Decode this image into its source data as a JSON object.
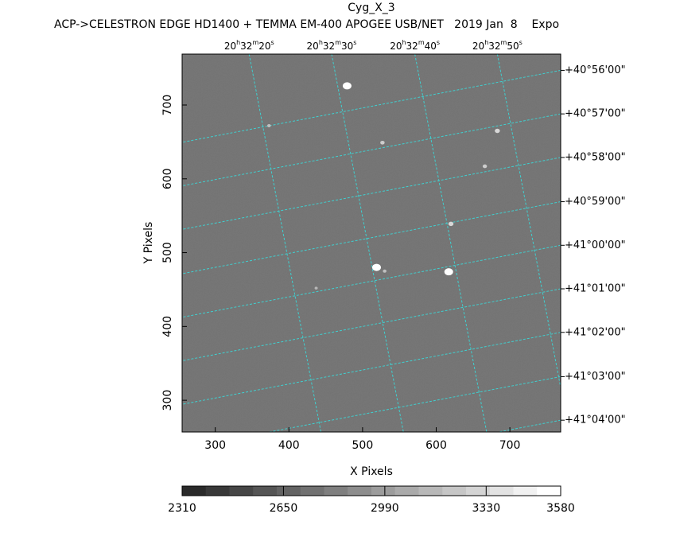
{
  "chart_data": {
    "type": "image",
    "title": "Cyg_X_3",
    "subtitle": "ACP->CELESTRON EDGE HD1400 + TEMMA EM-400 APOGEE USB/NET   2019 Jan  8    Expo",
    "x_label": "X Pixels",
    "y_label": "Y Pixels",
    "xlim": [
      255,
      769
    ],
    "ylim": [
      257,
      769
    ],
    "xticks": [
      300,
      400,
      500,
      600,
      700
    ],
    "yticks": [
      300,
      400,
      500,
      600,
      700
    ],
    "x2ticks": [
      {
        "value": 346,
        "label": "20h32m20s"
      },
      {
        "value": 458,
        "label": "20h32m30s"
      },
      {
        "value": 571,
        "label": "20h32m40s"
      },
      {
        "value": 683,
        "label": "20h32m50s"
      }
    ],
    "y2ticks": [
      {
        "value": 747,
        "label": "+40°56'00\""
      },
      {
        "value": 688,
        "label": "+40°57'00\""
      },
      {
        "value": 629,
        "label": "+40°58'00\""
      },
      {
        "value": 569,
        "label": "+40°59'00\""
      },
      {
        "value": 510,
        "label": "+41°00'00\""
      },
      {
        "value": 451,
        "label": "+41°01'00\""
      },
      {
        "value": 392,
        "label": "+41°02'00\""
      },
      {
        "value": 332,
        "label": "+41°03'00\""
      },
      {
        "value": 273,
        "label": "+41°04'00\""
      }
    ],
    "grid_color": "#3fd0d0",
    "stars": {
      "x": [
        479,
        519,
        617,
        620,
        527,
        683,
        666,
        373,
        530,
        437
      ],
      "y": [
        726,
        480,
        474,
        539,
        649,
        665,
        617,
        672,
        475,
        452
      ],
      "values": [
        3580,
        3580,
        3580,
        3200,
        3100,
        3200,
        3100,
        2990,
        2990,
        2900
      ]
    },
    "colorbar": {
      "lim": [
        2310,
        3580
      ],
      "ticks": [
        2310,
        2650,
        2990,
        3330,
        3580
      ]
    }
  }
}
